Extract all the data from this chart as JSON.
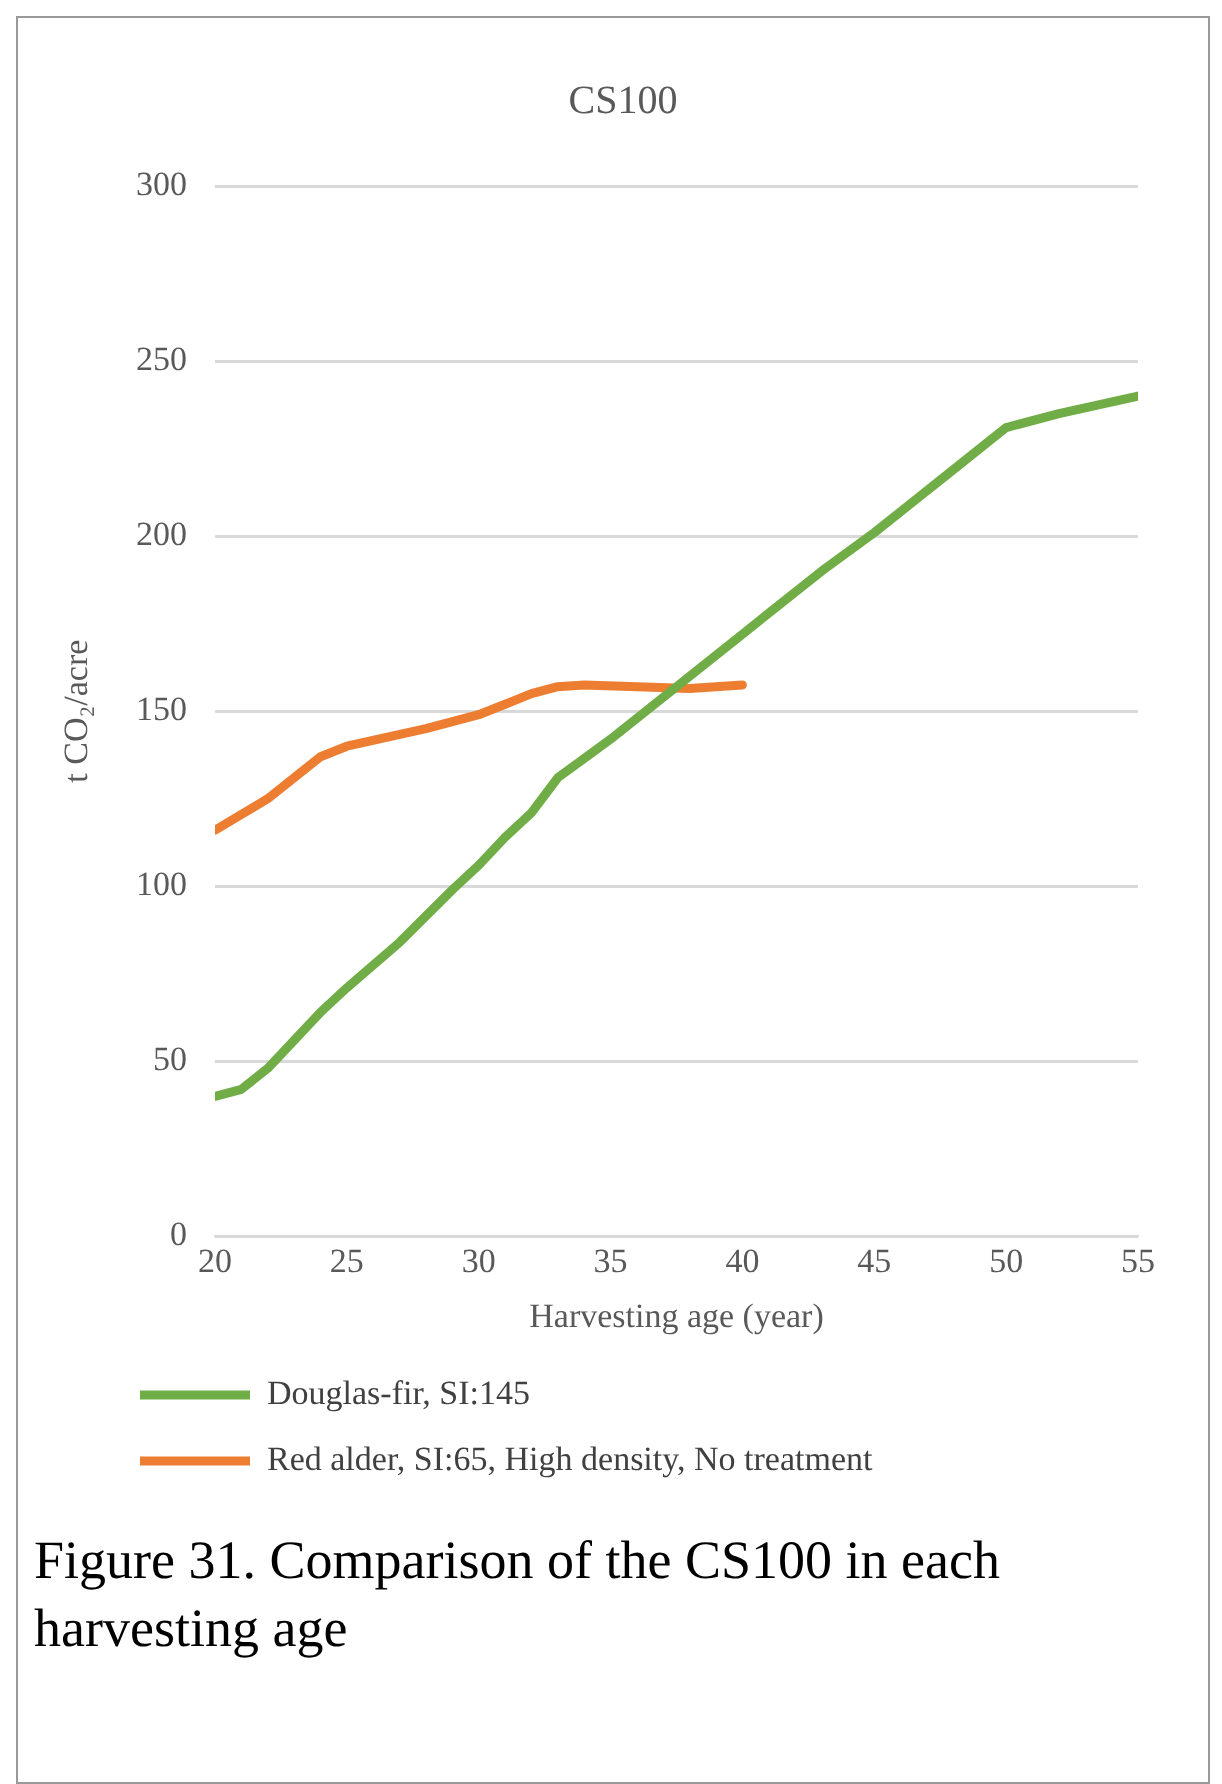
{
  "chart_data": {
    "type": "line",
    "title": "CS100",
    "xlabel": "Harvesting age (year)",
    "ylabel": "t CO₂/acre",
    "xlim": [
      20,
      55
    ],
    "xticks": [
      20,
      25,
      30,
      35,
      40,
      45,
      50,
      55
    ],
    "ylim": [
      0,
      300
    ],
    "yticks": [
      0,
      50,
      100,
      150,
      200,
      250,
      300
    ],
    "grid": "y",
    "legend": "bottom",
    "marker": "none",
    "line_style": "solid",
    "series": [
      {
        "name": "Douglas-fir, SI:145",
        "color": "#70ad47",
        "x": [
          20,
          21,
          22,
          23,
          24,
          25,
          27,
          29,
          30,
          31,
          32,
          33,
          35,
          37,
          38,
          40,
          43,
          45,
          48,
          50,
          52,
          55
        ],
        "values": [
          40,
          42,
          48,
          56,
          64,
          71,
          84,
          99,
          106,
          114,
          121,
          131,
          142,
          154,
          160,
          172,
          190,
          201,
          219,
          231,
          235,
          240
        ]
      },
      {
        "name": "Red alder, SI:65, High density, No treatment",
        "color": "#ed7d31",
        "x": [
          20,
          22,
          24,
          25,
          28,
          30,
          31,
          32,
          33,
          34,
          36,
          38,
          40
        ],
        "values": [
          116,
          125,
          137,
          140,
          145,
          149,
          152,
          155,
          157,
          157.5,
          157,
          156.5,
          157.5
        ]
      }
    ],
    "annotations": [
      "Figure 31. Comparison of the CS100 in each harvesting age"
    ]
  }
}
